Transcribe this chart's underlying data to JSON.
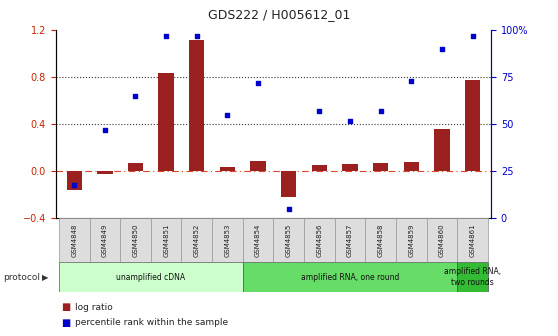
{
  "title": "GDS222 / H005612_01",
  "samples": [
    "GSM4848",
    "GSM4849",
    "GSM4850",
    "GSM4851",
    "GSM4852",
    "GSM4853",
    "GSM4854",
    "GSM4855",
    "GSM4856",
    "GSM4857",
    "GSM4858",
    "GSM4859",
    "GSM4860",
    "GSM4861"
  ],
  "log_ratio": [
    -0.16,
    -0.02,
    0.07,
    0.84,
    1.12,
    0.04,
    0.09,
    -0.22,
    0.05,
    0.06,
    0.07,
    0.08,
    0.36,
    0.78
  ],
  "percentile_pct": [
    18,
    47,
    65,
    97,
    97,
    55,
    72,
    5,
    57,
    52,
    57,
    73,
    90,
    97
  ],
  "ylim_left": [
    -0.4,
    1.2
  ],
  "ylim_right": [
    0,
    100
  ],
  "yticks_left": [
    -0.4,
    0.0,
    0.4,
    0.8,
    1.2
  ],
  "yticks_right": [
    0,
    25,
    50,
    75,
    100
  ],
  "ytick_labels_right": [
    "0",
    "25",
    "50",
    "75",
    "100%"
  ],
  "hlines_dotted": [
    0.4,
    0.8
  ],
  "hline_zero_dash": 0.0,
  "bar_color": "#9B2020",
  "scatter_color": "#0000CC",
  "protocol_groups": [
    {
      "label": "unamplified cDNA",
      "start": 0,
      "end": 5,
      "color": "#CCFFCC"
    },
    {
      "label": "amplified RNA, one round",
      "start": 6,
      "end": 12,
      "color": "#66DD66"
    },
    {
      "label": "amplified RNA,\ntwo rounds",
      "start": 13,
      "end": 13,
      "color": "#33BB33"
    }
  ],
  "protocol_label": "protocol",
  "legend_items": [
    {
      "label": "log ratio",
      "color": "#9B2020"
    },
    {
      "label": "percentile rank within the sample",
      "color": "#0000CC"
    }
  ],
  "sample_box_color": "#DDDDDD",
  "sample_box_edge": "#999999",
  "left_axis_color": "#CC2200",
  "right_axis_color": "#0000CC",
  "zero_line_color": "#DD2200",
  "dotted_line_color": "#333333",
  "bg_color": "#FFFFFF"
}
